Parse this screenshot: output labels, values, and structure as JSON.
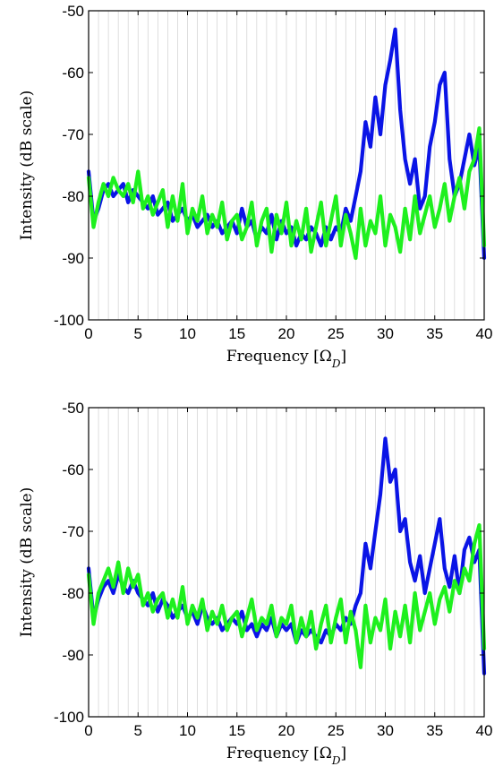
{
  "chart_data": [
    {
      "type": "line",
      "xlabel": "Frequency [Ω_D]",
      "ylabel": "Intensity (dB scale)",
      "xlim": [
        0,
        40
      ],
      "ylim": [
        -100,
        -50
      ],
      "xticks": [
        0,
        5,
        10,
        15,
        20,
        25,
        30,
        35,
        40
      ],
      "yticks": [
        -100,
        -90,
        -80,
        -70,
        -60,
        -50
      ],
      "grid": "vertical",
      "colors": {
        "blue": "#0a14e6",
        "green": "#1ef01e"
      },
      "series": [
        {
          "color": "#0a14e6",
          "x": [
            0,
            0.5,
            1,
            1.5,
            2,
            2.5,
            3,
            3.5,
            4,
            4.5,
            5,
            5.5,
            6,
            6.5,
            7,
            7.5,
            8,
            8.5,
            9,
            9.5,
            10,
            10.5,
            11,
            11.5,
            12,
            12.5,
            13,
            13.5,
            14,
            14.5,
            15,
            15.5,
            16,
            16.5,
            17,
            17.5,
            18,
            18.5,
            19,
            19.5,
            20,
            20.5,
            21,
            21.5,
            22,
            22.5,
            23,
            23.5,
            24,
            24.5,
            25,
            25.5,
            26,
            26.5,
            27,
            27.5,
            28,
            28.5,
            29,
            29.5,
            30,
            30.5,
            31,
            31.5,
            32,
            32.5,
            33,
            33.5,
            34,
            34.5,
            35,
            35.5,
            36,
            36.5,
            37,
            37.5,
            38,
            38.5,
            39,
            39.5,
            40
          ],
          "y": [
            -76,
            -84,
            -82,
            -79,
            -78,
            -80,
            -79,
            -78,
            -81,
            -79,
            -80,
            -81,
            -82,
            -80,
            -83,
            -82,
            -81,
            -84,
            -83,
            -82,
            -84,
            -83,
            -85,
            -84,
            -83,
            -85,
            -84,
            -86,
            -85,
            -84,
            -86,
            -82,
            -85,
            -84,
            -87,
            -85,
            -86,
            -83,
            -87,
            -84,
            -86,
            -85,
            -88,
            -86,
            -87,
            -85,
            -86,
            -88,
            -85,
            -87,
            -85,
            -86,
            -82,
            -84,
            -80,
            -76,
            -68,
            -72,
            -64,
            -70,
            -62,
            -58,
            -53,
            -66,
            -74,
            -78,
            -74,
            -82,
            -80,
            -72,
            -68,
            -62,
            -60,
            -74,
            -80,
            -78,
            -74,
            -70,
            -75,
            -72,
            -90
          ]
        },
        {
          "color": "#1ef01e",
          "x": [
            0,
            0.5,
            1,
            1.5,
            2,
            2.5,
            3,
            3.5,
            4,
            4.5,
            5,
            5.5,
            6,
            6.5,
            7,
            7.5,
            8,
            8.5,
            9,
            9.5,
            10,
            10.5,
            11,
            11.5,
            12,
            12.5,
            13,
            13.5,
            14,
            14.5,
            15,
            15.5,
            16,
            16.5,
            17,
            17.5,
            18,
            18.5,
            19,
            19.5,
            20,
            20.5,
            21,
            21.5,
            22,
            22.5,
            23,
            23.5,
            24,
            24.5,
            25,
            25.5,
            26,
            26.5,
            27,
            27.5,
            28,
            28.5,
            29,
            29.5,
            30,
            30.5,
            31,
            31.5,
            32,
            32.5,
            33,
            33.5,
            34,
            34.5,
            35,
            35.5,
            36,
            36.5,
            37,
            37.5,
            38,
            38.5,
            39,
            39.5,
            40
          ],
          "y": [
            -77,
            -85,
            -81,
            -78,
            -80,
            -77,
            -79,
            -80,
            -78,
            -81,
            -76,
            -82,
            -80,
            -83,
            -81,
            -79,
            -85,
            -80,
            -84,
            -78,
            -86,
            -82,
            -84,
            -80,
            -86,
            -83,
            -85,
            -81,
            -87,
            -84,
            -83,
            -87,
            -85,
            -81,
            -88,
            -84,
            -82,
            -89,
            -83,
            -86,
            -81,
            -88,
            -84,
            -87,
            -82,
            -89,
            -85,
            -81,
            -88,
            -84,
            -80,
            -88,
            -83,
            -86,
            -90,
            -82,
            -88,
            -84,
            -86,
            -80,
            -88,
            -83,
            -85,
            -89,
            -82,
            -87,
            -80,
            -86,
            -83,
            -80,
            -85,
            -82,
            -78,
            -84,
            -80,
            -77,
            -82,
            -76,
            -74,
            -69,
            -88
          ]
        }
      ]
    },
    {
      "type": "line",
      "xlabel": "Frequency [Ω_D]",
      "ylabel": "Intensity (dB scale)",
      "xlim": [
        0,
        40
      ],
      "ylim": [
        -100,
        -50
      ],
      "xticks": [
        0,
        5,
        10,
        15,
        20,
        25,
        30,
        35,
        40
      ],
      "yticks": [
        -100,
        -90,
        -80,
        -70,
        -60,
        -50
      ],
      "grid": "vertical",
      "colors": {
        "blue": "#0a14e6",
        "green": "#1ef01e"
      },
      "series": [
        {
          "color": "#0a14e6",
          "x": [
            0,
            0.5,
            1,
            1.5,
            2,
            2.5,
            3,
            3.5,
            4,
            4.5,
            5,
            5.5,
            6,
            6.5,
            7,
            7.5,
            8,
            8.5,
            9,
            9.5,
            10,
            10.5,
            11,
            11.5,
            12,
            12.5,
            13,
            13.5,
            14,
            14.5,
            15,
            15.5,
            16,
            16.5,
            17,
            17.5,
            18,
            18.5,
            19,
            19.5,
            20,
            20.5,
            21,
            21.5,
            22,
            22.5,
            23,
            23.5,
            24,
            24.5,
            25,
            25.5,
            26,
            26.5,
            27,
            27.5,
            28,
            28.5,
            29,
            29.5,
            30,
            30.5,
            31,
            31.5,
            32,
            32.5,
            33,
            33.5,
            34,
            34.5,
            35,
            35.5,
            36,
            36.5,
            37,
            37.5,
            38,
            38.5,
            39,
            39.5,
            40
          ],
          "y": [
            -76,
            -84,
            -81,
            -79,
            -78,
            -80,
            -77,
            -79,
            -80,
            -78,
            -80,
            -81,
            -82,
            -80,
            -83,
            -81,
            -82,
            -84,
            -83,
            -82,
            -84,
            -83,
            -85,
            -82,
            -84,
            -85,
            -84,
            -86,
            -85,
            -84,
            -85,
            -83,
            -86,
            -85,
            -87,
            -85,
            -86,
            -84,
            -87,
            -85,
            -86,
            -85,
            -88,
            -86,
            -87,
            -86,
            -87,
            -88,
            -86,
            -87,
            -85,
            -86,
            -84,
            -85,
            -82,
            -80,
            -72,
            -76,
            -70,
            -64,
            -55,
            -62,
            -60,
            -70,
            -68,
            -75,
            -78,
            -74,
            -80,
            -76,
            -72,
            -68,
            -76,
            -79,
            -74,
            -80,
            -73,
            -71,
            -75,
            -73,
            -93
          ]
        },
        {
          "color": "#1ef01e",
          "x": [
            0,
            0.5,
            1,
            1.5,
            2,
            2.5,
            3,
            3.5,
            4,
            4.5,
            5,
            5.5,
            6,
            6.5,
            7,
            7.5,
            8,
            8.5,
            9,
            9.5,
            10,
            10.5,
            11,
            11.5,
            12,
            12.5,
            13,
            13.5,
            14,
            14.5,
            15,
            15.5,
            16,
            16.5,
            17,
            17.5,
            18,
            18.5,
            19,
            19.5,
            20,
            20.5,
            21,
            21.5,
            22,
            22.5,
            23,
            23.5,
            24,
            24.5,
            25,
            25.5,
            26,
            26.5,
            27,
            27.5,
            28,
            28.5,
            29,
            29.5,
            30,
            30.5,
            31,
            31.5,
            32,
            32.5,
            33,
            33.5,
            34,
            34.5,
            35,
            35.5,
            36,
            36.5,
            37,
            37.5,
            38,
            38.5,
            39,
            39.5,
            40
          ],
          "y": [
            -77,
            -85,
            -80,
            -78,
            -76,
            -79,
            -75,
            -80,
            -76,
            -79,
            -77,
            -82,
            -80,
            -83,
            -81,
            -80,
            -84,
            -81,
            -84,
            -79,
            -85,
            -82,
            -84,
            -81,
            -86,
            -83,
            -85,
            -82,
            -86,
            -84,
            -83,
            -87,
            -84,
            -81,
            -86,
            -84,
            -85,
            -82,
            -87,
            -84,
            -85,
            -82,
            -88,
            -84,
            -87,
            -83,
            -89,
            -85,
            -82,
            -88,
            -84,
            -81,
            -88,
            -83,
            -86,
            -92,
            -82,
            -88,
            -84,
            -86,
            -81,
            -89,
            -83,
            -87,
            -82,
            -88,
            -80,
            -86,
            -83,
            -80,
            -85,
            -81,
            -79,
            -83,
            -78,
            -80,
            -76,
            -78,
            -72,
            -69,
            -89
          ]
        }
      ]
    }
  ]
}
